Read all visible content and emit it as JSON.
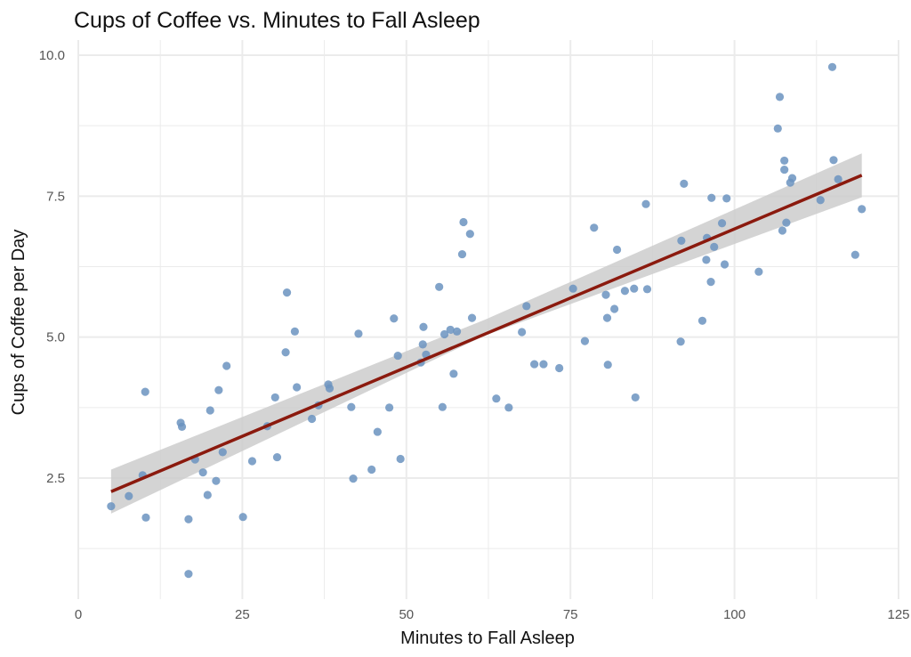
{
  "chart_data": {
    "type": "scatter",
    "title": "Cups of Coffee vs. Minutes to Fall Asleep",
    "xlabel": "Minutes to Fall Asleep",
    "ylabel": "Cups of Coffee per Day",
    "xlim": [
      0,
      125
    ],
    "ylim": [
      0.7,
      10.0
    ],
    "x_ticks": [
      0,
      25,
      50,
      75,
      100,
      125
    ],
    "x_tick_labels": [
      "0",
      "25",
      "50",
      "75",
      "100",
      "125"
    ],
    "y_ticks": [
      2.5,
      5.0,
      7.5,
      10.0
    ],
    "y_tick_labels": [
      "2.5",
      "5.0",
      "7.5",
      "10.0"
    ],
    "grid": true,
    "legend": "none",
    "colors": {
      "points": "#6b93bf",
      "trend_line": "#8b1a0e",
      "confidence_band": "#cccccc",
      "grid": "#ebebeb"
    },
    "series": [
      {
        "values": [
          [
            5,
            2.0
          ],
          [
            7.7,
            2.18
          ],
          [
            9.8,
            2.55
          ],
          [
            10.3,
            1.8
          ],
          [
            10.2,
            4.03
          ],
          [
            15.6,
            3.48
          ],
          [
            15.8,
            3.41
          ],
          [
            16.8,
            1.77
          ],
          [
            16.8,
            0.8
          ],
          [
            17.8,
            2.83
          ],
          [
            19,
            2.6
          ],
          [
            19.7,
            2.2
          ],
          [
            20.1,
            3.7
          ],
          [
            21,
            2.45
          ],
          [
            21.4,
            4.06
          ],
          [
            22,
            2.96
          ],
          [
            22.6,
            4.49
          ],
          [
            25.1,
            1.81
          ],
          [
            26.5,
            2.8
          ],
          [
            28.8,
            3.42
          ],
          [
            30,
            3.93
          ],
          [
            30.3,
            2.87
          ],
          [
            31.6,
            4.73
          ],
          [
            31.8,
            5.79
          ],
          [
            33,
            5.1
          ],
          [
            33.3,
            4.11
          ],
          [
            35.6,
            3.55
          ],
          [
            36.6,
            3.79
          ],
          [
            38.1,
            4.16
          ],
          [
            38.3,
            4.09
          ],
          [
            41.6,
            3.76
          ],
          [
            41.9,
            2.49
          ],
          [
            42.7,
            5.06
          ],
          [
            44.7,
            2.65
          ],
          [
            45.6,
            3.32
          ],
          [
            47.4,
            3.75
          ],
          [
            48.1,
            5.33
          ],
          [
            48.7,
            4.67
          ],
          [
            49.1,
            2.84
          ],
          [
            52.2,
            4.55
          ],
          [
            52.5,
            4.87
          ],
          [
            52.6,
            5.18
          ],
          [
            53,
            4.69
          ],
          [
            55,
            5.89
          ],
          [
            55.5,
            3.76
          ],
          [
            55.8,
            5.05
          ],
          [
            56.7,
            5.13
          ],
          [
            57.2,
            4.35
          ],
          [
            57.7,
            5.1
          ],
          [
            58.5,
            6.47
          ],
          [
            58.7,
            7.04
          ],
          [
            59.7,
            6.83
          ],
          [
            60,
            5.34
          ],
          [
            63.7,
            3.91
          ],
          [
            65.6,
            3.75
          ],
          [
            67.6,
            5.09
          ],
          [
            68.3,
            5.55
          ],
          [
            69.5,
            4.52
          ],
          [
            70.9,
            4.52
          ],
          [
            73.3,
            4.45
          ],
          [
            75.4,
            5.86
          ],
          [
            77.2,
            4.93
          ],
          [
            78.6,
            6.94
          ],
          [
            80.4,
            5.75
          ],
          [
            80.6,
            5.34
          ],
          [
            80.7,
            4.51
          ],
          [
            81.7,
            5.5
          ],
          [
            82.1,
            6.55
          ],
          [
            83.3,
            5.82
          ],
          [
            84.7,
            5.86
          ],
          [
            84.9,
            3.93
          ],
          [
            86.5,
            7.36
          ],
          [
            86.7,
            5.85
          ],
          [
            91.8,
            4.92
          ],
          [
            91.9,
            6.71
          ],
          [
            92.3,
            7.72
          ],
          [
            95.1,
            5.29
          ],
          [
            95.7,
            6.37
          ],
          [
            95.8,
            6.76
          ],
          [
            96.4,
            5.98
          ],
          [
            96.5,
            7.47
          ],
          [
            96.9,
            6.6
          ],
          [
            98.1,
            7.02
          ],
          [
            98.5,
            6.29
          ],
          [
            98.8,
            7.46
          ],
          [
            103.7,
            6.16
          ],
          [
            106.6,
            8.7
          ],
          [
            106.9,
            9.26
          ],
          [
            107.3,
            6.89
          ],
          [
            107.6,
            8.13
          ],
          [
            107.6,
            7.97
          ],
          [
            107.9,
            7.03
          ],
          [
            108.5,
            7.74
          ],
          [
            108.8,
            7.82
          ],
          [
            113.1,
            7.43
          ],
          [
            114.9,
            9.79
          ],
          [
            115.1,
            8.14
          ],
          [
            115.8,
            7.8
          ],
          [
            118.4,
            6.46
          ],
          [
            119.4,
            7.27
          ]
        ]
      }
    ],
    "trend_line": {
      "x": [
        5,
        119.4
      ],
      "y": [
        2.26,
        7.87
      ]
    },
    "confidence_band": {
      "x": [
        5,
        62,
        119.4
      ],
      "lower": [
        1.87,
        5.03,
        7.48
      ],
      "upper": [
        2.65,
        5.31,
        8.26
      ]
    }
  }
}
